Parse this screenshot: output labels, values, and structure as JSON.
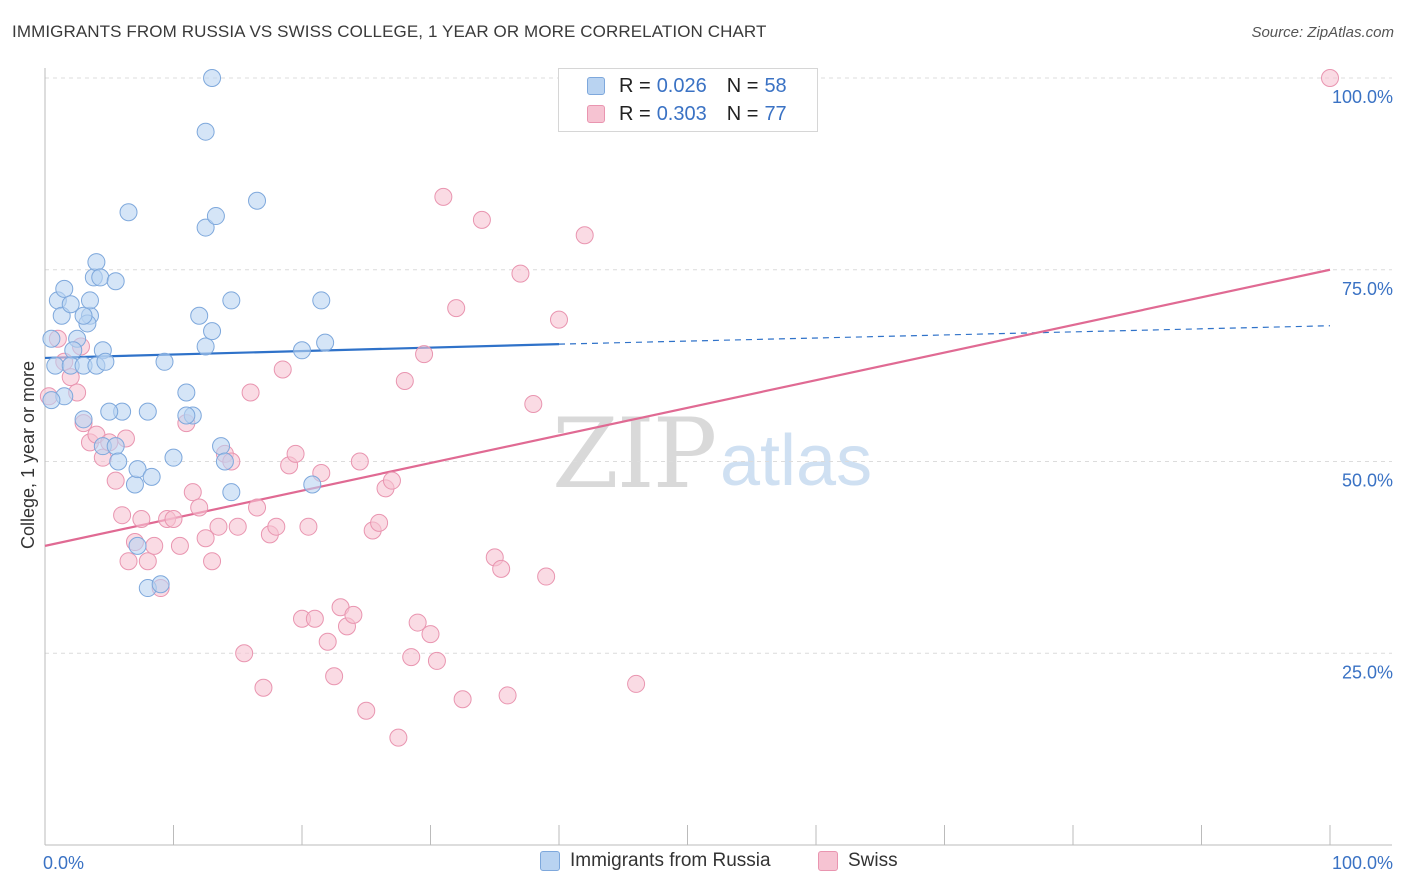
{
  "title": "IMMIGRANTS FROM RUSSIA VS SWISS COLLEGE, 1 YEAR OR MORE CORRELATION CHART",
  "source": "Source: ZipAtlas.com",
  "watermark": {
    "part1": "ZIP",
    "part2": "atlas"
  },
  "legend": {
    "r_label": "R =",
    "n_label": "N =",
    "series": [
      {
        "name": "Immigrants from Russia",
        "r": "0.026",
        "n": "58"
      },
      {
        "name": "Swiss",
        "r": "0.303",
        "n": "77"
      }
    ]
  },
  "colors": {
    "blue_fill": "#b9d3f1",
    "blue_stroke": "#7ea8dc",
    "blue_line": "#2f72c9",
    "pink_fill": "#f6c3d2",
    "pink_stroke": "#e995b0",
    "pink_line": "#e06a93",
    "tick_label": "#3a72c4",
    "grid": "#dcdcdc"
  },
  "chart_data": {
    "type": "scatter",
    "title": "IMMIGRANTS FROM RUSSIA VS SWISS COLLEGE, 1 YEAR OR MORE CORRELATION CHART",
    "xlabel": "",
    "ylabel": "College, 1 year or more",
    "xlim": [
      0,
      100
    ],
    "ylim": [
      0,
      100
    ],
    "x_tick_labels": [
      "0.0%",
      "100.0%"
    ],
    "y_tick_labels": [
      "100.0%",
      "75.0%",
      "50.0%",
      "25.0%"
    ],
    "y_ticks": [
      100,
      75,
      50,
      25
    ],
    "legend_position": "top-center",
    "series": [
      {
        "name": "Immigrants from Russia",
        "r": 0.026,
        "n": 58,
        "trend": {
          "x0": 0,
          "y0": 63.5,
          "x1": 40,
          "y1": 65.3,
          "dashed_to_x": 100,
          "dashed_to_y": 67.7
        },
        "points": [
          [
            0.5,
            66
          ],
          [
            1,
            71
          ],
          [
            1.5,
            72.5
          ],
          [
            1.3,
            69
          ],
          [
            2,
            70.5
          ],
          [
            2.5,
            66
          ],
          [
            2.2,
            64.5
          ],
          [
            0.8,
            62.5
          ],
          [
            2,
            62.5
          ],
          [
            3,
            62.5
          ],
          [
            3.5,
            69
          ],
          [
            3.3,
            68
          ],
          [
            3.8,
            74
          ],
          [
            4,
            76
          ],
          [
            4.3,
            74
          ],
          [
            5.5,
            73.5
          ],
          [
            4.5,
            64.5
          ],
          [
            4,
            62.5
          ],
          [
            3,
            69
          ],
          [
            4.7,
            63
          ],
          [
            6,
            56.5
          ],
          [
            5,
            56.5
          ],
          [
            4.5,
            52
          ],
          [
            5.5,
            52
          ],
          [
            5.7,
            50
          ],
          [
            7,
            47
          ],
          [
            7.2,
            49
          ],
          [
            8,
            33.5
          ],
          [
            8.3,
            48
          ],
          [
            8,
            56.5
          ],
          [
            9,
            34
          ],
          [
            10,
            50.5
          ],
          [
            9.3,
            63
          ],
          [
            11,
            59
          ],
          [
            11.5,
            56
          ],
          [
            11,
            56
          ],
          [
            12,
            69
          ],
          [
            12.5,
            65
          ],
          [
            12.5,
            80.5
          ],
          [
            13,
            67
          ],
          [
            12.5,
            93
          ],
          [
            13,
            100
          ],
          [
            13.3,
            82
          ],
          [
            13.7,
            52
          ],
          [
            14,
            50
          ],
          [
            14.5,
            71
          ],
          [
            14.5,
            46
          ],
          [
            16.5,
            84
          ],
          [
            20,
            64.5
          ],
          [
            20.8,
            47
          ],
          [
            21.5,
            71
          ],
          [
            21.8,
            65.5
          ],
          [
            3,
            55.5
          ],
          [
            1.5,
            58.5
          ],
          [
            6.5,
            82.5
          ],
          [
            0.5,
            58
          ],
          [
            7.2,
            39
          ],
          [
            3.5,
            71
          ]
        ]
      },
      {
        "name": "Swiss",
        "r": 0.303,
        "n": 77,
        "trend": {
          "x0": 0,
          "y0": 39,
          "x1": 100,
          "y1": 75
        },
        "points": [
          [
            0.3,
            58.5
          ],
          [
            1,
            66
          ],
          [
            1.5,
            63
          ],
          [
            2,
            61
          ],
          [
            2.5,
            59
          ],
          [
            3,
            55
          ],
          [
            3.5,
            52.5
          ],
          [
            4,
            53.5
          ],
          [
            4.5,
            50.5
          ],
          [
            5,
            52.5
          ],
          [
            5.5,
            47.5
          ],
          [
            6,
            43
          ],
          [
            6.5,
            37
          ],
          [
            7,
            39.5
          ],
          [
            7.5,
            42.5
          ],
          [
            8,
            37
          ],
          [
            8.5,
            39
          ],
          [
            9,
            33.5
          ],
          [
            9.5,
            42.5
          ],
          [
            10,
            42.5
          ],
          [
            10.5,
            39
          ],
          [
            11,
            55
          ],
          [
            11.5,
            46
          ],
          [
            12,
            44
          ],
          [
            12.5,
            40
          ],
          [
            13,
            37
          ],
          [
            13.5,
            41.5
          ],
          [
            14,
            51
          ],
          [
            14.5,
            50
          ],
          [
            15,
            41.5
          ],
          [
            15.5,
            25
          ],
          [
            16,
            59
          ],
          [
            16.5,
            44
          ],
          [
            17,
            20.5
          ],
          [
            17.5,
            40.5
          ],
          [
            18,
            41.5
          ],
          [
            18.5,
            62
          ],
          [
            19,
            49.5
          ],
          [
            19.5,
            51
          ],
          [
            20,
            29.5
          ],
          [
            20.5,
            41.5
          ],
          [
            21,
            29.5
          ],
          [
            21.5,
            48.5
          ],
          [
            22,
            26.5
          ],
          [
            22.5,
            22
          ],
          [
            23,
            31
          ],
          [
            23.5,
            28.5
          ],
          [
            24,
            30
          ],
          [
            24.5,
            50
          ],
          [
            25,
            17.5
          ],
          [
            25.5,
            41
          ],
          [
            26,
            42
          ],
          [
            26.5,
            46.5
          ],
          [
            27,
            47.5
          ],
          [
            27.5,
            14
          ],
          [
            28,
            60.5
          ],
          [
            28.5,
            24.5
          ],
          [
            29,
            29
          ],
          [
            29.5,
            64
          ],
          [
            30,
            27.5
          ],
          [
            30.5,
            24
          ],
          [
            31,
            84.5
          ],
          [
            32,
            70
          ],
          [
            32.5,
            19
          ],
          [
            34,
            81.5
          ],
          [
            35,
            37.5
          ],
          [
            35.5,
            36
          ],
          [
            36,
            19.5
          ],
          [
            37,
            74.5
          ],
          [
            38,
            57.5
          ],
          [
            39,
            35
          ],
          [
            40,
            68.5
          ],
          [
            42,
            79.5
          ],
          [
            100,
            100
          ],
          [
            46,
            21
          ],
          [
            6.3,
            53
          ],
          [
            2.8,
            65
          ]
        ]
      }
    ]
  }
}
